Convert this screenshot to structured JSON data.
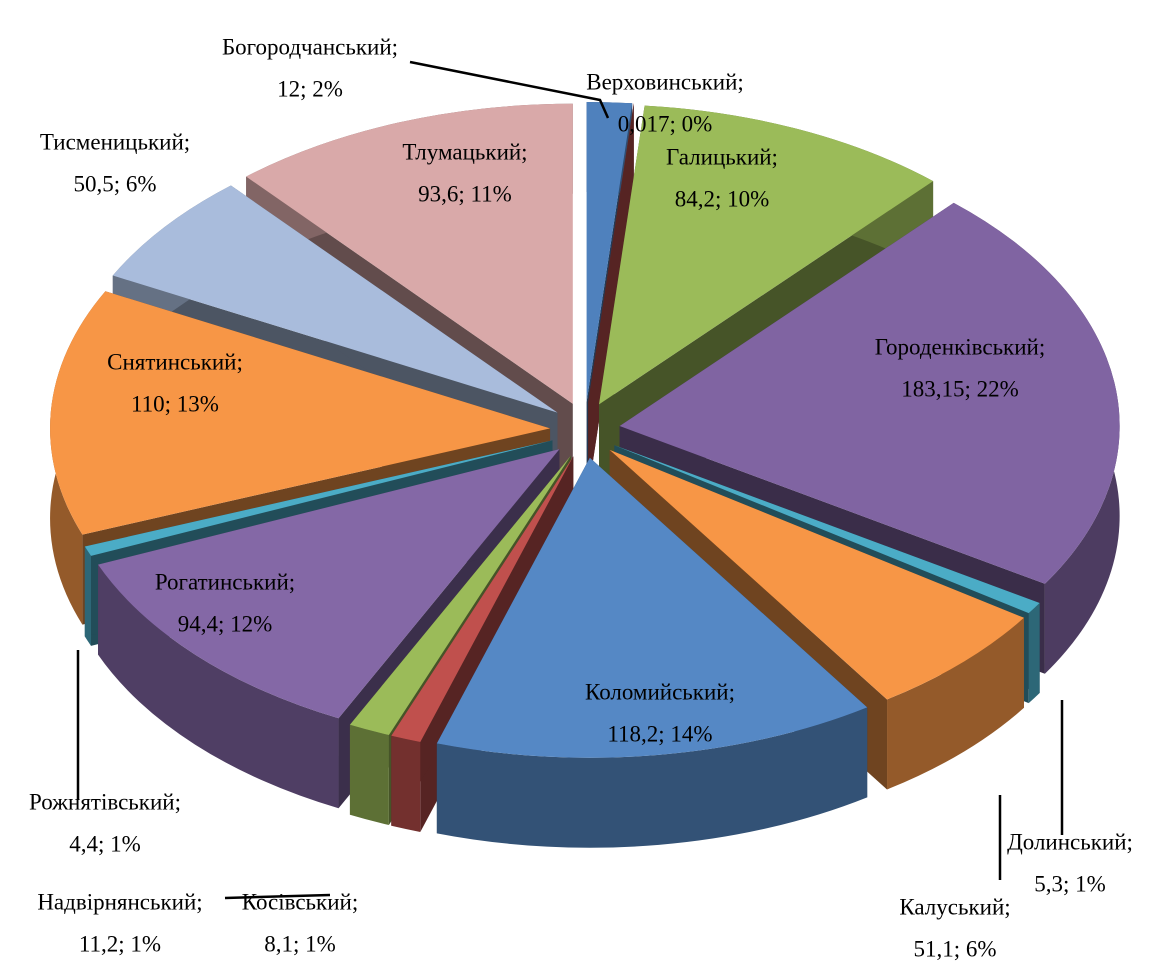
{
  "chart_data": {
    "type": "pie3d",
    "categories": [
      "Богородчанський;",
      "Верховинський;",
      "Галицький;",
      "Городенківський;",
      "Долинський;",
      "Калуський;",
      "Коломийський;",
      "Косівський;",
      "Надвірнянський;",
      "Рогатинський;",
      "Рожнятівський;",
      "Снятинський;",
      "Тисменицький;",
      "Тлумацький;"
    ],
    "values": [
      12,
      0.017,
      84.2,
      183.15,
      5.3,
      51.1,
      118.2,
      8.1,
      11.2,
      94.4,
      4.4,
      110,
      50.5,
      93.6
    ],
    "value_labels": [
      "12; 2%",
      "0,017; 0%",
      "84,2; 10%",
      "183,15; 22%",
      "5,3; 1%",
      "51,1; 6%",
      "118,2; 14%",
      "8,1; 1%",
      "11,2; 1%",
      "94,4; 12%",
      "4,4; 1%",
      "110; 13%",
      "50,5; 6%",
      "93,6; 11%"
    ],
    "colors": [
      "#4f81bd",
      "#c0504d",
      "#9bbb59",
      "#8064a2",
      "#4bacc6",
      "#f79646",
      "#5588c5",
      "#c0504d",
      "#9bbb59",
      "#8468a6",
      "#4bacc6",
      "#f79646",
      "#a9bcdc",
      "#d9a9a9"
    ]
  }
}
